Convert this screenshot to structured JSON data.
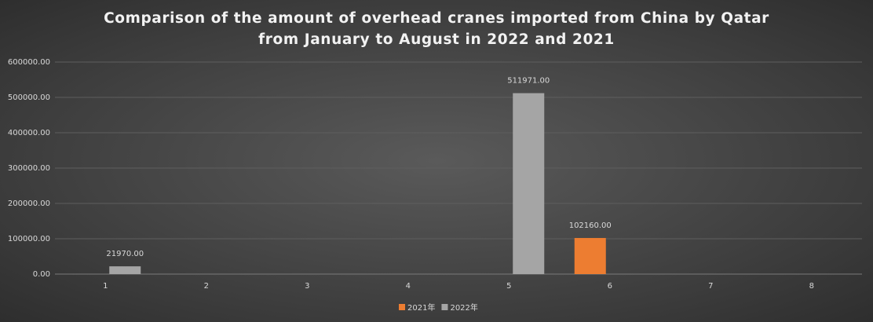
{
  "chart_data": {
    "type": "bar",
    "title": "Comparison of the amount of overhead cranes imported from China by Qatar from January to August in 2022 and 2021",
    "categories": [
      "1",
      "2",
      "3",
      "4",
      "5",
      "6",
      "7",
      "8"
    ],
    "series": [
      {
        "name": "2021年",
        "color": "#ed7d31",
        "values": [
          null,
          null,
          null,
          null,
          null,
          102160,
          null,
          null
        ],
        "value_labels": [
          null,
          null,
          null,
          null,
          null,
          "102160.00",
          null,
          null
        ]
      },
      {
        "name": "2022年",
        "color": "#a5a5a5",
        "values": [
          21970,
          null,
          null,
          null,
          511971,
          null,
          null,
          null
        ],
        "value_labels": [
          "21970.00",
          null,
          null,
          null,
          "511971.00",
          null,
          null,
          null
        ]
      }
    ],
    "ylim": [
      0,
      600000
    ],
    "yticks": [
      {
        "value": 0,
        "label": "0.00"
      },
      {
        "value": 100000,
        "label": "100000.00"
      },
      {
        "value": 200000,
        "label": "200000.00"
      },
      {
        "value": 300000,
        "label": "300000.00"
      },
      {
        "value": 400000,
        "label": "400000.00"
      },
      {
        "value": 500000,
        "label": "500000.00"
      },
      {
        "value": 600000,
        "label": "600000.00"
      }
    ],
    "grid": true,
    "legend": "bottom"
  }
}
